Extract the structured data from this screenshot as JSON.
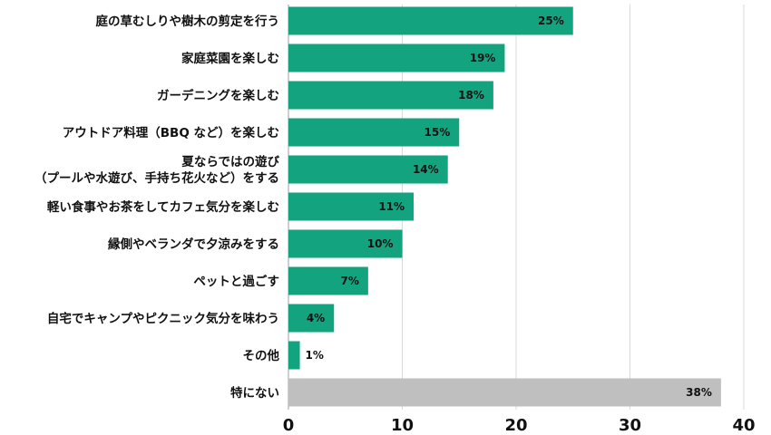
{
  "chart_data": {
    "type": "bar",
    "orientation": "horizontal",
    "categories": [
      "庭の草むしりや樹木の剪定を行う",
      "家庭菜園を楽しむ",
      "ガーデニングを楽しむ",
      "アウトドア料理（BBQ など）を楽しむ",
      "夏ならではの遊び\n（プールや水遊び、手持ち花火など）をする",
      "軽い食事やお茶をしてカフェ気分を楽しむ",
      "縁側やベランダで夕涼みをする",
      "ペットと過ごす",
      "自宅でキャンプやピクニック気分を味わう",
      "その他",
      "特にない"
    ],
    "values": [
      25,
      19,
      18,
      15,
      14,
      11,
      10,
      7,
      4,
      1,
      38
    ],
    "data_labels": [
      "25%",
      "19%",
      "18%",
      "15%",
      "14%",
      "11%",
      "10%",
      "7%",
      "4%",
      "1%",
      "38%"
    ],
    "xlim": [
      0,
      40
    ],
    "xticks": [
      0,
      10,
      20,
      30,
      40
    ],
    "grid": true,
    "colors": {
      "main": "#13a37f",
      "none": "#bfbfbf",
      "grid": "#d9d9d9"
    }
  }
}
